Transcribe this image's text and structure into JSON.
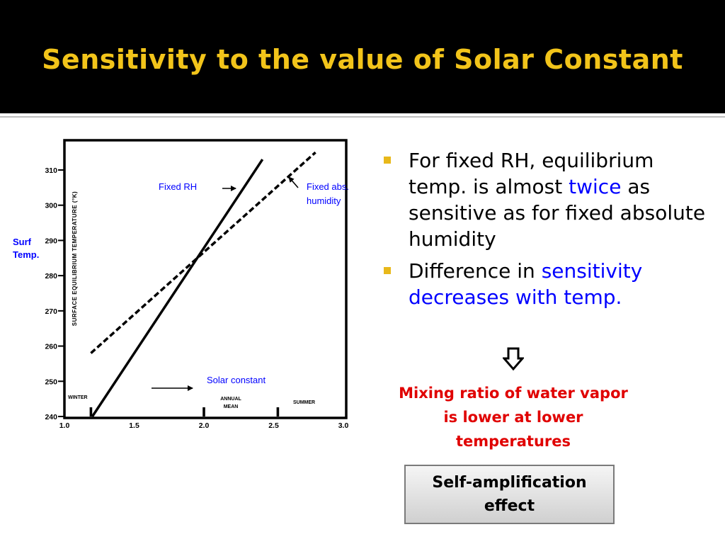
{
  "slide": {
    "title": "Sensitivity to the value of Solar Constant",
    "bullets": [
      {
        "parts": [
          "For fixed RH, equilibrium temp. is almost ",
          "twice",
          " as sensitive as for fixed absolute humidity"
        ]
      },
      {
        "parts": [
          "Difference in ",
          "sensitivity decreases with temp."
        ]
      }
    ],
    "note": "Mixing ratio of water vapor is lower at lower temperatures",
    "box_label": "Self-amplification effect",
    "colors": {
      "title": "#f2c41a",
      "accent_text": "#0000ff",
      "note": "#e00000",
      "bullet_marker": "#e8b81a",
      "title_bar": "#000000"
    }
  },
  "chart_data": {
    "type": "line",
    "x": [
      1.0,
      1.5,
      2.0,
      2.5,
      3.0
    ],
    "xlim": [
      1.0,
      3.0
    ],
    "ylim": [
      240,
      315
    ],
    "y_ticks": [
      240,
      250,
      260,
      270,
      280,
      290,
      300,
      310
    ],
    "x_tick_labels": [
      "1.0",
      "1.5",
      "2.0",
      "2.5",
      "3.0"
    ],
    "ylabel": "SURFACE EQUILIBRIUM TEMPERATURE (°K)",
    "ylabel_annotation": "Surf Temp.",
    "xlabel": "Solar constant",
    "series": [
      {
        "name": "Fixed RH",
        "style": "solid",
        "points": [
          [
            1.2,
            240
          ],
          [
            2.42,
            313
          ]
        ]
      },
      {
        "name": "Fixed abs. humidity",
        "style": "dashed",
        "points": [
          [
            1.19,
            258
          ],
          [
            2.8,
            315
          ]
        ]
      }
    ],
    "markers": [
      {
        "label": "WINTER",
        "x": 1.19
      },
      {
        "label": "ANNUAL MEAN",
        "x": 2.0
      },
      {
        "label": "SUMMER",
        "x": 2.53
      }
    ]
  }
}
